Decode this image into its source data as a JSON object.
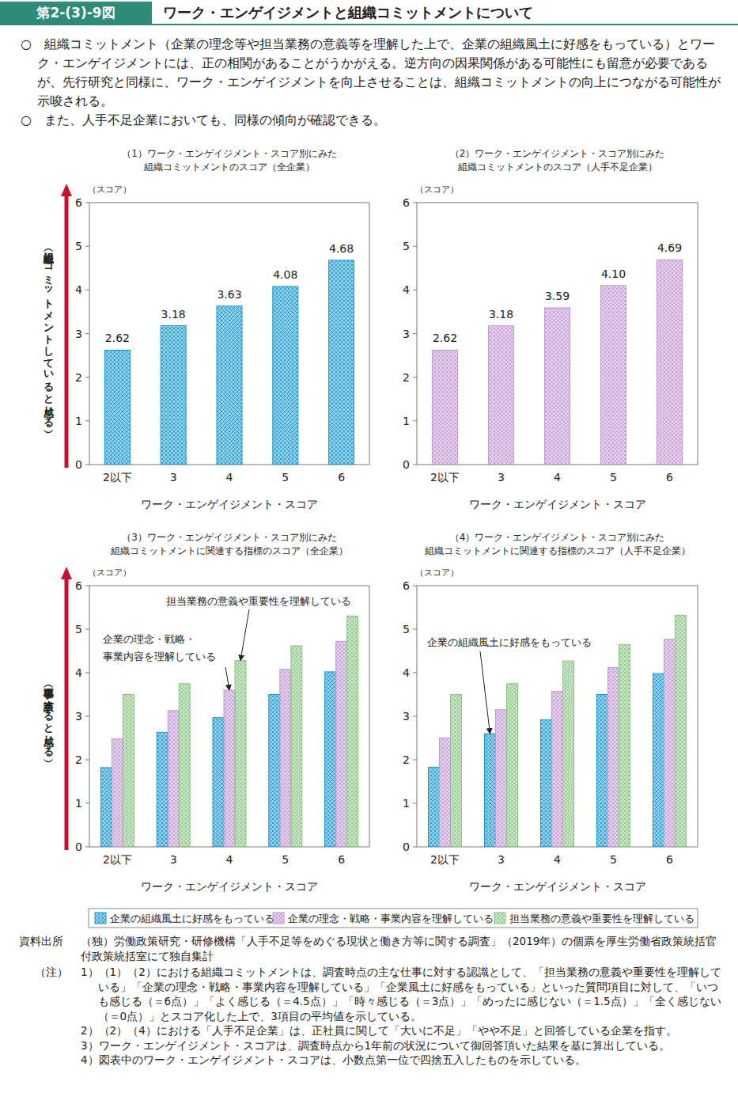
{
  "header": {
    "figure_no": "第2-(3)-9図",
    "title": "ワーク・エンゲイジメントと組織コミットメントについて",
    "bullets": [
      "○　組織コミットメント（企業の理念等や担当業務の意義等を理解した上で、企業の組織風土に好感をもっている）とワーク・エンゲイジメントには、正の相関があることがうかがえる。逆方向の因果関係がある可能性にも留意が必要であるが、先行研究と同様に、ワーク・エンゲイジメントを向上させることは、組織コミットメントの向上につながる可能性が示唆される。",
      "○　また、人手不足企業においても、同様の傾向が確認できる。"
    ]
  },
  "chart_data": [
    {
      "type": "bar",
      "title": "（1）ワーク・エンゲイジメント・スコア別にみた\n組織コミットメントのスコア（全企業）",
      "y_label": "（スコア）",
      "y_side_label": "（組織にコミットメントしていると感じる）",
      "x_label": "ワーク・エンゲイジメント・スコア",
      "categories": [
        "2以下",
        "3",
        "4",
        "5",
        "6"
      ],
      "values": [
        2.62,
        3.18,
        3.63,
        4.08,
        4.68
      ],
      "color": "#1b9ad0",
      "ylim": [
        0,
        6
      ],
      "yticks": [
        0,
        1,
        2,
        3,
        4,
        5,
        6
      ],
      "grid": false,
      "data_labels": true
    },
    {
      "type": "bar",
      "title": "（2）ワーク・エンゲイジメント・スコア別にみた\n組織コミットメントのスコア（人手不足企業）",
      "y_label": "（スコア）",
      "x_label": "ワーク・エンゲイジメント・スコア",
      "categories": [
        "2以下",
        "3",
        "4",
        "5",
        "6"
      ],
      "values": [
        2.62,
        3.18,
        3.59,
        4.1,
        4.69
      ],
      "value_labels": [
        "2.62",
        "3.18",
        "3.59",
        "4.10",
        "4.69"
      ],
      "color": "#c39ad6",
      "ylim": [
        0,
        6
      ],
      "yticks": [
        0,
        1,
        2,
        3,
        4,
        5,
        6
      ],
      "grid": false,
      "data_labels": true
    },
    {
      "type": "bar",
      "title": "（3）ワーク・エンゲイジメント・スコア別にみた\n組織コミットメントに関連する指標のスコア（全企業）",
      "y_label": "（スコア）",
      "y_side_label": "（各事項に該当すると感じる）",
      "x_label": "ワーク・エンゲイジメント・スコア",
      "categories": [
        "2以下",
        "3",
        "4",
        "5",
        "6"
      ],
      "series": [
        {
          "name": "企業の組織風土に好感をもっている",
          "color": "#1b9ad0",
          "values": [
            1.82,
            2.63,
            2.97,
            3.5,
            4.02
          ]
        },
        {
          "name": "企業の理念・戦略・事業内容を理解している",
          "color": "#c39ad6",
          "values": [
            2.48,
            3.13,
            3.6,
            4.08,
            4.72
          ]
        },
        {
          "name": "担当業務の意義や重要性を理解している",
          "color": "#8cc586",
          "values": [
            3.5,
            3.75,
            4.28,
            4.62,
            5.3
          ]
        }
      ],
      "annotations": [
        {
          "text": "企業の理念・戦略・\n事業内容を理解している",
          "x": "4",
          "y": 3.6,
          "series": 1
        },
        {
          "text": "担当業務の意義や重要性を理解している",
          "x": "4",
          "y": 4.28,
          "series": 2
        }
      ],
      "ylim": [
        0,
        6
      ],
      "yticks": [
        0,
        1,
        2,
        3,
        4,
        5,
        6
      ],
      "grid": false,
      "legend": "bottom"
    },
    {
      "type": "bar",
      "title": "（4）ワーク・エンゲイジメント・スコア別にみた\n組織コミットメントに関連する指標のスコア（人手不足企業）",
      "y_label": "（スコア）",
      "x_label": "ワーク・エンゲイジメント・スコア",
      "categories": [
        "2以下",
        "3",
        "4",
        "5",
        "6"
      ],
      "series": [
        {
          "name": "企業の組織風土に好感をもっている",
          "color": "#1b9ad0",
          "values": [
            1.83,
            2.6,
            2.92,
            3.5,
            3.98
          ]
        },
        {
          "name": "企業の理念・戦略・事業内容を理解している",
          "color": "#c39ad6",
          "values": [
            2.5,
            3.15,
            3.57,
            4.12,
            4.77
          ]
        },
        {
          "name": "担当業務の意義や重要性を理解している",
          "color": "#8cc586",
          "values": [
            3.5,
            3.75,
            4.27,
            4.65,
            5.32
          ]
        }
      ],
      "annotations": [
        {
          "text": "企業の組織風土に好感をもっている",
          "x": "3",
          "y": 2.6,
          "series": 0
        }
      ],
      "ylim": [
        0,
        6
      ],
      "yticks": [
        0,
        1,
        2,
        3,
        4,
        5,
        6
      ],
      "grid": false
    }
  ],
  "source": {
    "label": "資料出所",
    "text": "（独）労働政策研究・研修機構「人手不足等をめぐる現状と働き方等に関する調査」（2019年）の個票を厚生労働省政策統括官付政策統括室にて独自集計"
  },
  "notes": {
    "label": "（注）",
    "items": [
      "1）（1）（2）における組織コミットメントは、調査時点の主な仕事に対する認識として、「担当業務の意義や重要性を理解している」「企業の理念・戦略・事業内容を理解している」「企業風土に好感をもっている」といった質問項目に対して、「いつも感じる（＝6点）」「よく感じる（＝4.5点）」「時々感じる（＝3点）」「めったに感じない（＝1.5点）」「全く感じない（＝0点）」とスコア化した上で、3項目の平均値を示している。",
      "2）（2）（4）における「人手不足企業」は、正社員に関して「大いに不足」「やや不足」と回答している企業を指す。",
      "3）ワーク・エンゲイジメント・スコアは、調査時点から1年前の状況について御回答頂いた結果を基に算出している。",
      "4）図表中のワーク・エンゲイジメント・スコアは、小数点第一位で四捨五入したものを示している。"
    ]
  }
}
